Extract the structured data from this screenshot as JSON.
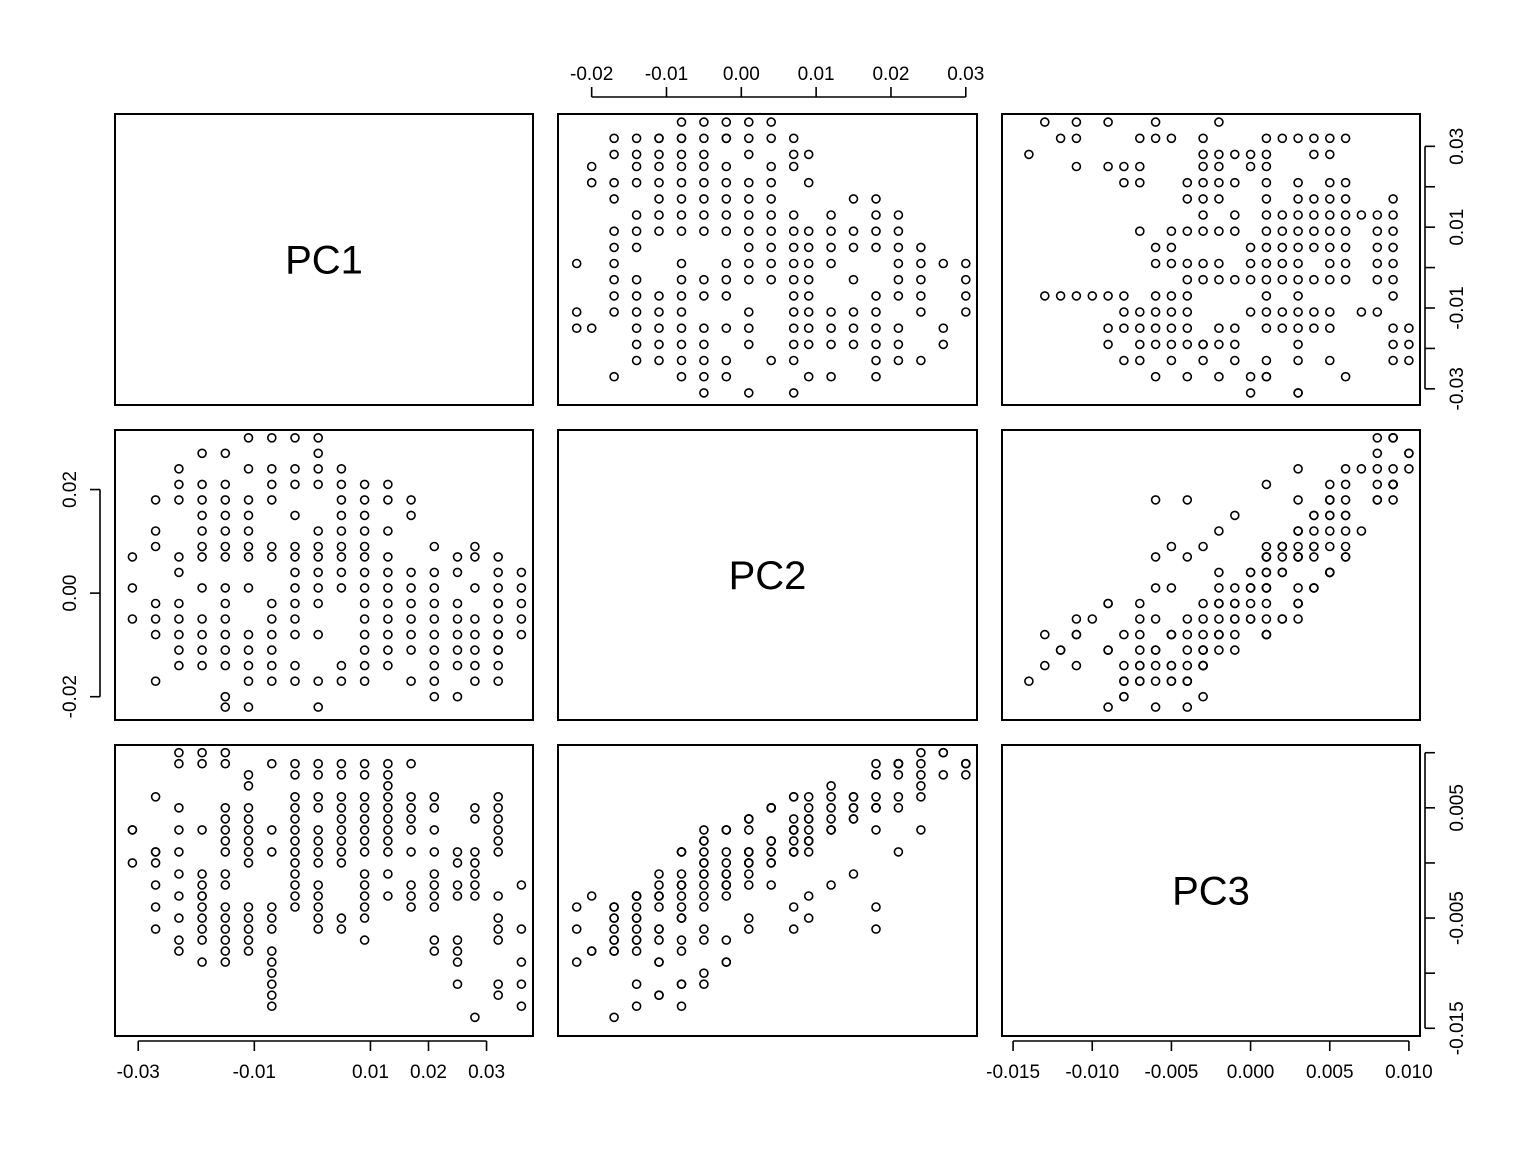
{
  "chart_data": {
    "type": "scatter",
    "kind": "pairs-matrix",
    "variables": [
      "PC1",
      "PC2",
      "PC3"
    ],
    "grid": false,
    "point_style": "open-circle",
    "point_color": "#000000",
    "axes": {
      "PC1": {
        "range": [
          -0.034,
          0.038
        ],
        "ticks": [
          -0.03,
          -0.01,
          0.01,
          0.02,
          0.03
        ],
        "tick_labels": [
          "-0.03",
          "-0.01",
          "0.01",
          "0.02",
          "0.03"
        ],
        "side": "bottom"
      },
      "PC2": {
        "range": [
          -0.0245,
          0.0315
        ],
        "ticks": [
          -0.02,
          -0.01,
          0.0,
          0.01,
          0.02,
          0.03
        ],
        "tick_labels": [
          "-0.02",
          "-0.01",
          "0.00",
          "0.01",
          "0.02",
          "0.03"
        ],
        "side_x": "top",
        "side_y": "left",
        "y_ticks": [
          -0.02,
          0.0,
          0.02
        ],
        "y_tick_labels": [
          "-0.02",
          "0.00",
          "0.02"
        ]
      },
      "PC3": {
        "range": [
          -0.0157,
          0.0107
        ],
        "ticks": [
          -0.015,
          -0.01,
          -0.005,
          0.0,
          0.005,
          0.01
        ],
        "tick_labels": [
          "-0.015",
          "-0.010",
          "-0.005",
          "0.000",
          "0.005",
          "0.010"
        ],
        "side": "bottom"
      },
      "PC1_y": {
        "ticks": [
          -0.03,
          -0.02,
          -0.01,
          0.0,
          0.01,
          0.02,
          0.03
        ],
        "tick_labels": [
          "-0.03",
          "",
          "-0.01",
          "",
          "0.01",
          "",
          "0.03"
        ],
        "side": "right"
      },
      "PC3_y": {
        "ticks": [
          -0.015,
          -0.01,
          -0.005,
          0.0,
          0.005,
          0.01
        ],
        "tick_labels": [
          "-0.015",
          "",
          "-0.005",
          "",
          "0.005",
          ""
        ],
        "side": "right"
      }
    },
    "points": [
      [
        -0.031,
        0.007,
        0.003
      ],
      [
        -0.031,
        0.001,
        0.0
      ],
      [
        -0.031,
        -0.005,
        0.003
      ],
      [
        -0.027,
        0.018,
        -0.006
      ],
      [
        -0.027,
        0.012,
        0.006
      ],
      [
        -0.027,
        0.009,
        0.001
      ],
      [
        -0.027,
        -0.002,
        -0.002
      ],
      [
        -0.027,
        -0.005,
        0.0
      ],
      [
        -0.027,
        -0.008,
        0.001
      ],
      [
        -0.027,
        -0.017,
        -0.004
      ],
      [
        -0.023,
        0.024,
        0.01
      ],
      [
        -0.023,
        0.021,
        0.009
      ],
      [
        -0.023,
        0.018,
        0.005
      ],
      [
        -0.023,
        0.007,
        0.003
      ],
      [
        -0.023,
        0.004,
        0.001
      ],
      [
        -0.023,
        -0.002,
        -0.001
      ],
      [
        -0.023,
        -0.005,
        -0.003
      ],
      [
        -0.023,
        -0.008,
        -0.005
      ],
      [
        -0.023,
        -0.011,
        -0.007
      ],
      [
        -0.023,
        -0.014,
        -0.008
      ],
      [
        -0.019,
        0.027,
        0.01
      ],
      [
        -0.019,
        0.021,
        0.009
      ],
      [
        -0.019,
        0.018,
        0.003
      ],
      [
        -0.019,
        0.015,
        -0.001
      ],
      [
        -0.019,
        0.012,
        -0.002
      ],
      [
        -0.019,
        0.009,
        -0.003
      ],
      [
        -0.019,
        0.007,
        -0.004
      ],
      [
        -0.019,
        0.001,
        -0.005
      ],
      [
        -0.019,
        -0.005,
        -0.006
      ],
      [
        -0.019,
        -0.008,
        -0.007
      ],
      [
        -0.019,
        -0.011,
        -0.009
      ],
      [
        -0.019,
        -0.014,
        -0.003
      ],
      [
        -0.015,
        0.027,
        0.01
      ],
      [
        -0.015,
        0.021,
        0.009
      ],
      [
        -0.015,
        0.018,
        0.005
      ],
      [
        -0.015,
        0.015,
        0.004
      ],
      [
        -0.015,
        0.012,
        0.003
      ],
      [
        -0.015,
        0.009,
        0.002
      ],
      [
        -0.015,
        0.007,
        0.001
      ],
      [
        -0.015,
        0.001,
        -0.001
      ],
      [
        -0.015,
        -0.002,
        -0.002
      ],
      [
        -0.015,
        -0.005,
        -0.004
      ],
      [
        -0.015,
        -0.008,
        -0.005
      ],
      [
        -0.015,
        -0.011,
        -0.006
      ],
      [
        -0.015,
        -0.014,
        -0.007
      ],
      [
        -0.015,
        -0.02,
        -0.008
      ],
      [
        -0.015,
        -0.022,
        -0.009
      ],
      [
        -0.011,
        0.03,
        0.008
      ],
      [
        -0.011,
        0.024,
        0.007
      ],
      [
        -0.011,
        0.018,
        0.005
      ],
      [
        -0.011,
        0.015,
        0.004
      ],
      [
        -0.011,
        0.012,
        0.003
      ],
      [
        -0.011,
        0.009,
        0.002
      ],
      [
        -0.011,
        0.007,
        0.001
      ],
      [
        -0.011,
        0.001,
        0.0
      ],
      [
        -0.011,
        -0.008,
        -0.005
      ],
      [
        -0.011,
        -0.011,
        -0.006
      ],
      [
        -0.011,
        -0.014,
        -0.007
      ],
      [
        -0.011,
        -0.017,
        -0.008
      ],
      [
        -0.011,
        -0.022,
        -0.004
      ],
      [
        -0.007,
        0.03,
        0.009
      ],
      [
        -0.007,
        0.024,
        0.003
      ],
      [
        -0.007,
        0.021,
        0.001
      ],
      [
        -0.007,
        0.018,
        -0.004
      ],
      [
        -0.007,
        0.009,
        -0.005
      ],
      [
        -0.007,
        0.007,
        -0.006
      ],
      [
        -0.007,
        -0.002,
        -0.009
      ],
      [
        -0.007,
        -0.005,
        -0.01
      ],
      [
        -0.007,
        -0.008,
        -0.011
      ],
      [
        -0.007,
        -0.011,
        -0.012
      ],
      [
        -0.007,
        -0.014,
        -0.013
      ],
      [
        -0.007,
        -0.017,
        -0.008
      ],
      [
        -0.003,
        0.03,
        0.009
      ],
      [
        -0.003,
        0.024,
        0.008
      ],
      [
        -0.003,
        0.021,
        0.006
      ],
      [
        -0.003,
        0.015,
        0.005
      ],
      [
        -0.003,
        0.009,
        0.004
      ],
      [
        -0.003,
        0.007,
        0.003
      ],
      [
        -0.003,
        0.004,
        0.002
      ],
      [
        -0.003,
        0.001,
        0.001
      ],
      [
        -0.003,
        -0.002,
        0.0
      ],
      [
        -0.003,
        -0.005,
        -0.001
      ],
      [
        -0.003,
        -0.008,
        -0.002
      ],
      [
        -0.003,
        -0.014,
        -0.003
      ],
      [
        -0.003,
        -0.017,
        -0.004
      ],
      [
        0.001,
        0.03,
        0.009
      ],
      [
        0.001,
        0.027,
        0.008
      ],
      [
        0.001,
        0.024,
        0.006
      ],
      [
        0.001,
        0.021,
        0.005
      ],
      [
        0.001,
        0.012,
        0.003
      ],
      [
        0.001,
        0.009,
        0.002
      ],
      [
        0.001,
        0.007,
        0.001
      ],
      [
        0.001,
        0.004,
        0.0
      ],
      [
        0.001,
        0.001,
        -0.002
      ],
      [
        0.001,
        -0.002,
        -0.003
      ],
      [
        0.001,
        -0.008,
        -0.004
      ],
      [
        0.001,
        -0.017,
        -0.005
      ],
      [
        0.001,
        -0.022,
        -0.006
      ],
      [
        0.005,
        0.024,
        0.009
      ],
      [
        0.005,
        0.021,
        0.008
      ],
      [
        0.005,
        0.018,
        0.006
      ],
      [
        0.005,
        0.015,
        0.005
      ],
      [
        0.005,
        0.012,
        0.004
      ],
      [
        0.005,
        0.009,
        0.003
      ],
      [
        0.005,
        0.007,
        0.002
      ],
      [
        0.005,
        0.004,
        0.001
      ],
      [
        0.005,
        0.001,
        0.0
      ],
      [
        0.005,
        -0.014,
        -0.005
      ],
      [
        0.005,
        -0.017,
        -0.006
      ],
      [
        0.009,
        0.021,
        0.009
      ],
      [
        0.009,
        0.018,
        0.008
      ],
      [
        0.009,
        0.015,
        0.006
      ],
      [
        0.009,
        0.012,
        0.005
      ],
      [
        0.009,
        0.009,
        0.004
      ],
      [
        0.009,
        0.007,
        0.003
      ],
      [
        0.009,
        0.004,
        0.002
      ],
      [
        0.009,
        0.001,
        0.001
      ],
      [
        0.009,
        -0.002,
        -0.001
      ],
      [
        0.009,
        -0.005,
        -0.002
      ],
      [
        0.009,
        -0.008,
        -0.003
      ],
      [
        0.009,
        -0.011,
        -0.004
      ],
      [
        0.009,
        -0.014,
        -0.005
      ],
      [
        0.009,
        -0.017,
        -0.007
      ],
      [
        0.013,
        0.021,
        0.009
      ],
      [
        0.013,
        0.018,
        0.008
      ],
      [
        0.013,
        0.012,
        0.007
      ],
      [
        0.013,
        0.007,
        0.006
      ],
      [
        0.013,
        0.004,
        0.005
      ],
      [
        0.013,
        0.001,
        0.004
      ],
      [
        0.013,
        -0.002,
        0.003
      ],
      [
        0.013,
        -0.005,
        0.002
      ],
      [
        0.013,
        -0.008,
        0.001
      ],
      [
        0.013,
        -0.011,
        -0.001
      ],
      [
        0.013,
        -0.014,
        -0.003
      ],
      [
        0.017,
        0.018,
        0.009
      ],
      [
        0.017,
        0.015,
        0.006
      ],
      [
        0.017,
        0.004,
        0.005
      ],
      [
        0.017,
        0.001,
        0.004
      ],
      [
        0.017,
        -0.002,
        0.003
      ],
      [
        0.017,
        -0.005,
        0.001
      ],
      [
        0.017,
        -0.008,
        -0.002
      ],
      [
        0.017,
        -0.011,
        -0.003
      ],
      [
        0.017,
        -0.017,
        -0.004
      ],
      [
        0.021,
        0.009,
        0.006
      ],
      [
        0.021,
        0.004,
        0.005
      ],
      [
        0.021,
        0.001,
        0.003
      ],
      [
        0.021,
        -0.002,
        0.001
      ],
      [
        0.021,
        -0.005,
        -0.001
      ],
      [
        0.021,
        -0.008,
        -0.002
      ],
      [
        0.021,
        -0.011,
        -0.003
      ],
      [
        0.021,
        -0.014,
        -0.004
      ],
      [
        0.021,
        -0.017,
        -0.007
      ],
      [
        0.021,
        -0.02,
        -0.008
      ],
      [
        0.025,
        0.007,
        0.001
      ],
      [
        0.025,
        0.004,
        0.0
      ],
      [
        0.025,
        -0.002,
        -0.002
      ],
      [
        0.025,
        -0.005,
        -0.007
      ],
      [
        0.025,
        -0.008,
        -0.008
      ],
      [
        0.025,
        -0.011,
        -0.009
      ],
      [
        0.025,
        -0.014,
        -0.011
      ],
      [
        0.025,
        -0.02,
        -0.003
      ],
      [
        0.028,
        0.009,
        0.005
      ],
      [
        0.028,
        0.007,
        0.004
      ],
      [
        0.028,
        0.001,
        0.001
      ],
      [
        0.028,
        -0.005,
        0.0
      ],
      [
        0.028,
        -0.008,
        -0.001
      ],
      [
        0.028,
        -0.011,
        -0.002
      ],
      [
        0.028,
        -0.014,
        -0.003
      ],
      [
        0.028,
        -0.017,
        -0.014
      ],
      [
        0.032,
        0.007,
        0.006
      ],
      [
        0.032,
        0.004,
        0.005
      ],
      [
        0.032,
        0.001,
        0.004
      ],
      [
        0.032,
        -0.002,
        0.003
      ],
      [
        0.032,
        -0.005,
        0.002
      ],
      [
        0.032,
        -0.008,
        0.001
      ],
      [
        0.032,
        -0.011,
        -0.003
      ],
      [
        0.032,
        -0.017,
        -0.005
      ],
      [
        0.032,
        -0.014,
        -0.006
      ],
      [
        0.032,
        -0.002,
        -0.007
      ],
      [
        0.032,
        -0.008,
        -0.011
      ],
      [
        0.032,
        -0.011,
        -0.012
      ],
      [
        0.036,
        0.004,
        -0.002
      ],
      [
        0.036,
        0.001,
        -0.006
      ],
      [
        0.036,
        -0.002,
        -0.009
      ],
      [
        0.036,
        -0.005,
        -0.011
      ],
      [
        0.036,
        -0.008,
        -0.013
      ]
    ]
  }
}
